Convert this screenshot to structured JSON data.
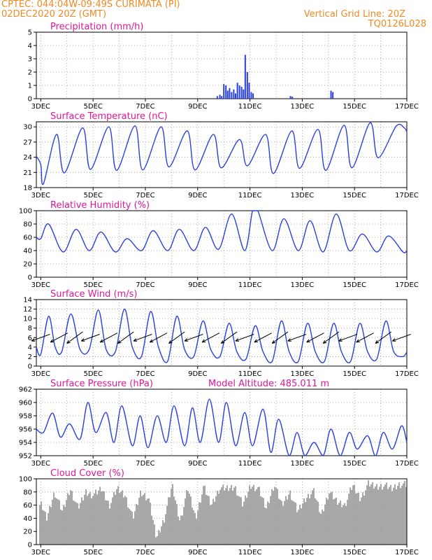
{
  "header": {
    "line1": "CPTEC:  044:04W-09:49S  CURIMATA (PI)",
    "line2_left": "02DEC2020 20Z (GMT)",
    "line2_right": "Vertical Grid Line: 20Z",
    "line3_right": "TQ0126L028"
  },
  "colors": {
    "header": "#f08a24",
    "title": "#e0179a",
    "line": "#2a3fe0",
    "cloud": "#a8a8a8",
    "wind_arrow": "#000000"
  },
  "x_ticks": [
    "3DEC",
    "5DEC",
    "7DEC",
    "9DEC",
    "11DEC",
    "13DEC",
    "15DEC",
    "17DEC"
  ],
  "chart_data": [
    {
      "id": "precip",
      "type": "bar",
      "title": "Precipitation (mm/h)",
      "x_range": [
        2.83,
        17.0
      ],
      "ylim": [
        0,
        5
      ],
      "yticks": [
        0,
        1,
        2,
        3,
        4,
        5
      ],
      "x": [
        9.75,
        9.85,
        9.92,
        10.0,
        10.08,
        10.15,
        10.22,
        10.3,
        10.38,
        10.45,
        10.52,
        10.6,
        10.68,
        10.75,
        10.82,
        10.9,
        10.97,
        11.05,
        11.12,
        12.55,
        12.62,
        14.1,
        14.17
      ],
      "values": [
        0.2,
        0.3,
        0.2,
        1.1,
        1.0,
        0.6,
        0.8,
        0.5,
        0.7,
        0.4,
        1.2,
        1.0,
        0.9,
        0.7,
        3.3,
        2.0,
        1.2,
        0.5,
        0.4,
        0.2,
        0.15,
        0.6,
        0.5
      ]
    },
    {
      "id": "temp",
      "type": "line",
      "title": "Surface Temperature (nC)",
      "x_range": [
        2.83,
        17.0
      ],
      "ylim": [
        18,
        31
      ],
      "yticks": [
        18,
        21,
        24,
        27,
        30
      ],
      "x": [
        2.83,
        3.0,
        3.1,
        3.6,
        3.9,
        4.6,
        4.9,
        5.6,
        5.9,
        6.6,
        6.9,
        7.6,
        7.9,
        8.6,
        8.9,
        9.6,
        9.9,
        10.6,
        10.9,
        11.6,
        11.9,
        12.6,
        12.9,
        13.6,
        13.9,
        14.6,
        14.9,
        15.6,
        15.9,
        16.6,
        16.9,
        17.0
      ],
      "values": [
        24.2,
        22.5,
        18.7,
        28.5,
        20.9,
        29.8,
        21.6,
        30.0,
        21.4,
        30.2,
        21.5,
        30.0,
        22.1,
        29.2,
        21.5,
        28.5,
        21.9,
        27.5,
        22.3,
        28.5,
        20.8,
        29.2,
        21.8,
        29.5,
        21.4,
        30.3,
        21.9,
        30.8,
        23.9,
        30.2,
        29.8,
        29.0
      ]
    },
    {
      "id": "rh",
      "type": "line",
      "title": "Relative Humidity (%)",
      "x_range": [
        2.83,
        17.0
      ],
      "ylim": [
        0,
        100
      ],
      "yticks": [
        0,
        20,
        40,
        60,
        80,
        100
      ],
      "x": [
        2.83,
        3.0,
        3.3,
        3.85,
        4.35,
        4.85,
        5.3,
        5.85,
        6.3,
        6.85,
        7.3,
        7.85,
        8.3,
        8.85,
        9.3,
        9.8,
        10.3,
        10.8,
        11.1,
        11.3,
        11.85,
        12.3,
        12.85,
        13.3,
        13.8,
        14.3,
        14.8,
        15.3,
        15.85,
        16.3,
        16.85,
        17.0
      ],
      "values": [
        60,
        58,
        80,
        38,
        72,
        40,
        68,
        38,
        58,
        40,
        70,
        40,
        72,
        40,
        75,
        42,
        95,
        40,
        100,
        100,
        40,
        88,
        40,
        85,
        38,
        95,
        40,
        65,
        38,
        62,
        38,
        40
      ]
    },
    {
      "id": "wind",
      "type": "line",
      "title": "Surface Wind (m/s)",
      "x_range": [
        2.83,
        17.0
      ],
      "ylim": [
        0,
        14
      ],
      "yticks": [
        0,
        2,
        4,
        6,
        8,
        10,
        12,
        14
      ],
      "x": [
        2.83,
        3.0,
        3.3,
        3.55,
        3.8,
        4.15,
        4.5,
        4.85,
        5.2,
        5.5,
        5.85,
        6.2,
        6.5,
        6.85,
        7.2,
        7.5,
        7.85,
        8.2,
        8.5,
        8.85,
        9.2,
        9.5,
        9.85,
        10.2,
        10.5,
        10.85,
        11.2,
        11.5,
        11.85,
        12.2,
        12.5,
        12.85,
        13.2,
        13.5,
        13.85,
        14.2,
        14.5,
        14.85,
        15.2,
        15.5,
        15.85,
        16.2,
        16.5,
        16.85,
        17.0
      ],
      "values": [
        4,
        2.5,
        10.5,
        4,
        3,
        11,
        3.5,
        3.5,
        11.8,
        3.5,
        3,
        12,
        4,
        2,
        11.5,
        4,
        1,
        10.5,
        3.5,
        2,
        9.5,
        3.5,
        2,
        9,
        3,
        1.5,
        8.5,
        3,
        1,
        9.5,
        3,
        1,
        9,
        3,
        1,
        9,
        3,
        1,
        9,
        3,
        1.5,
        9.5,
        3,
        2,
        3
      ],
      "arrows_x": [
        3.0,
        3.7,
        4.3,
        4.9,
        5.6,
        6.25,
        6.9,
        7.5,
        8.2,
        8.85,
        9.5,
        10.2,
        10.8,
        11.5,
        12.15,
        12.8,
        13.5,
        14.1,
        14.75,
        15.4,
        16.1,
        16.8
      ]
    },
    {
      "id": "pressure",
      "type": "line",
      "title": "Surface Pressure (hPa)",
      "subtitle": "Model Altitude: 485.011 m",
      "x_range": [
        2.83,
        17.0
      ],
      "ylim": [
        952,
        962
      ],
      "yticks": [
        952,
        954,
        956,
        958,
        960,
        962
      ],
      "x": [
        2.83,
        3.1,
        3.45,
        3.75,
        4.1,
        4.5,
        4.8,
        5.1,
        5.5,
        5.8,
        6.1,
        6.5,
        6.8,
        7.1,
        7.45,
        7.8,
        8.1,
        8.5,
        8.8,
        9.1,
        9.45,
        9.8,
        10.1,
        10.45,
        10.8,
        11.1,
        11.5,
        11.8,
        12.1,
        12.5,
        12.8,
        13.1,
        13.45,
        13.8,
        14.1,
        14.45,
        14.8,
        15.1,
        15.5,
        15.8,
        16.1,
        16.45,
        16.8,
        17.0
      ],
      "values": [
        956,
        955.5,
        958.4,
        954.8,
        956.8,
        954.5,
        960,
        955.5,
        958.5,
        954,
        959.5,
        953.5,
        958,
        953.2,
        958,
        954,
        959.5,
        953.5,
        959.2,
        954,
        960.5,
        954,
        960,
        953.5,
        958.5,
        953.5,
        959,
        952.5,
        957.5,
        952,
        955.5,
        952,
        954,
        952,
        956,
        952,
        955.5,
        953,
        955,
        952,
        955.5,
        953,
        956.5,
        954
      ]
    },
    {
      "id": "cloud",
      "type": "area",
      "title": "Cloud Cover (%)",
      "x_range": [
        2.83,
        17.0
      ],
      "ylim": [
        0,
        100
      ],
      "yticks": [
        0,
        20,
        40,
        60,
        80,
        100
      ],
      "x": [
        2.83,
        3.0,
        3.2,
        3.5,
        3.8,
        4.1,
        4.4,
        4.7,
        5.0,
        5.3,
        5.6,
        5.9,
        6.2,
        6.5,
        6.8,
        7.1,
        7.4,
        7.7,
        8.0,
        8.3,
        8.6,
        8.9,
        9.2,
        9.5,
        9.8,
        10.1,
        10.4,
        10.7,
        11.0,
        11.3,
        11.6,
        11.9,
        12.2,
        12.5,
        12.8,
        13.1,
        13.4,
        13.7,
        14.0,
        14.3,
        14.6,
        14.9,
        15.2,
        15.5,
        15.8,
        16.1,
        16.4,
        16.7,
        17.0
      ],
      "values": [
        55,
        60,
        40,
        80,
        50,
        85,
        55,
        80,
        75,
        85,
        60,
        85,
        75,
        40,
        80,
        70,
        10,
        40,
        90,
        35,
        85,
        40,
        88,
        60,
        85,
        85,
        88,
        60,
        90,
        85,
        55,
        92,
        60,
        80,
        50,
        70,
        82,
        45,
        80,
        65,
        60,
        90,
        70,
        92,
        88,
        90,
        85,
        92,
        90
      ]
    }
  ]
}
